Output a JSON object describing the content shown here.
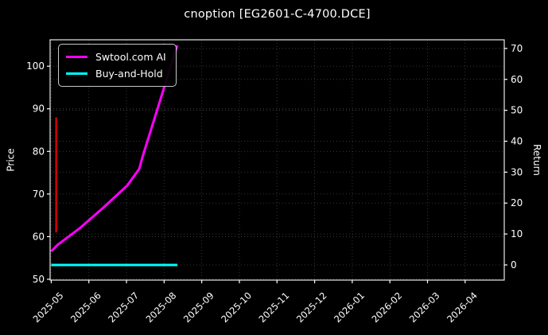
{
  "figure": {
    "title": "cnoption [EG2601-C-4700.DCE]"
  },
  "chart_data": {
    "type": "line",
    "title": "cnoption [EG2601-C-4700.DCE]",
    "background_color": "#000000",
    "text_color": "#ffffff",
    "spine_color": "#ffffff",
    "grid": {
      "show": true,
      "color": "#3c3c3c",
      "style": "dotted"
    },
    "x_axis": {
      "unit": "months-from-2025-05",
      "tick_labels": [
        "2025-05",
        "2025-06",
        "2025-07",
        "2025-08",
        "2025-09",
        "2025-10",
        "2025-11",
        "2025-12",
        "2026-01",
        "2026-02",
        "2026-03",
        "2026-04"
      ],
      "tick_positions": [
        0,
        1,
        2,
        3,
        4,
        5,
        6,
        7,
        8,
        9,
        10,
        11
      ],
      "range": [
        -0.03,
        12.04
      ],
      "tick_rotation_deg": 45
    },
    "left_axis": {
      "label": "Price",
      "ticks": [
        50,
        60,
        70,
        80,
        90,
        100
      ],
      "range": [
        49.8,
        106.2
      ]
    },
    "right_axis": {
      "label": "Return",
      "ticks": [
        0,
        10,
        20,
        30,
        40,
        50,
        60,
        70
      ],
      "range": [
        -4.9,
        72.8
      ]
    },
    "legend": {
      "location": "upper left",
      "entries": [
        {
          "label": "Swtool.com AI",
          "color": "#ff00ff"
        },
        {
          "label": "Buy-and-Hold",
          "color": "#00ffff"
        }
      ]
    },
    "series": [
      {
        "name": "Swtool.com AI",
        "axis": "right",
        "color": "#ff00ff",
        "line_width": 3,
        "points": [
          [
            0,
            4.4
          ],
          [
            0.16,
            6.4
          ],
          [
            0.75,
            11.8
          ],
          [
            1.38,
            18.5
          ],
          [
            2.02,
            25.7
          ],
          [
            2.34,
            31.1
          ],
          [
            2.42,
            34.7
          ],
          [
            3.35,
            71.0
          ]
        ]
      },
      {
        "name": "Buy-and-Hold",
        "axis": "right",
        "color": "#00ffff",
        "line_width": 3,
        "points": [
          [
            0,
            0
          ],
          [
            3.35,
            0
          ]
        ]
      },
      {
        "name": "red-price-spike",
        "axis": "left",
        "color": "#ff0000",
        "line_width": 2,
        "points": [
          [
            0.13,
            61
          ],
          [
            0.13,
            88
          ]
        ]
      }
    ]
  }
}
